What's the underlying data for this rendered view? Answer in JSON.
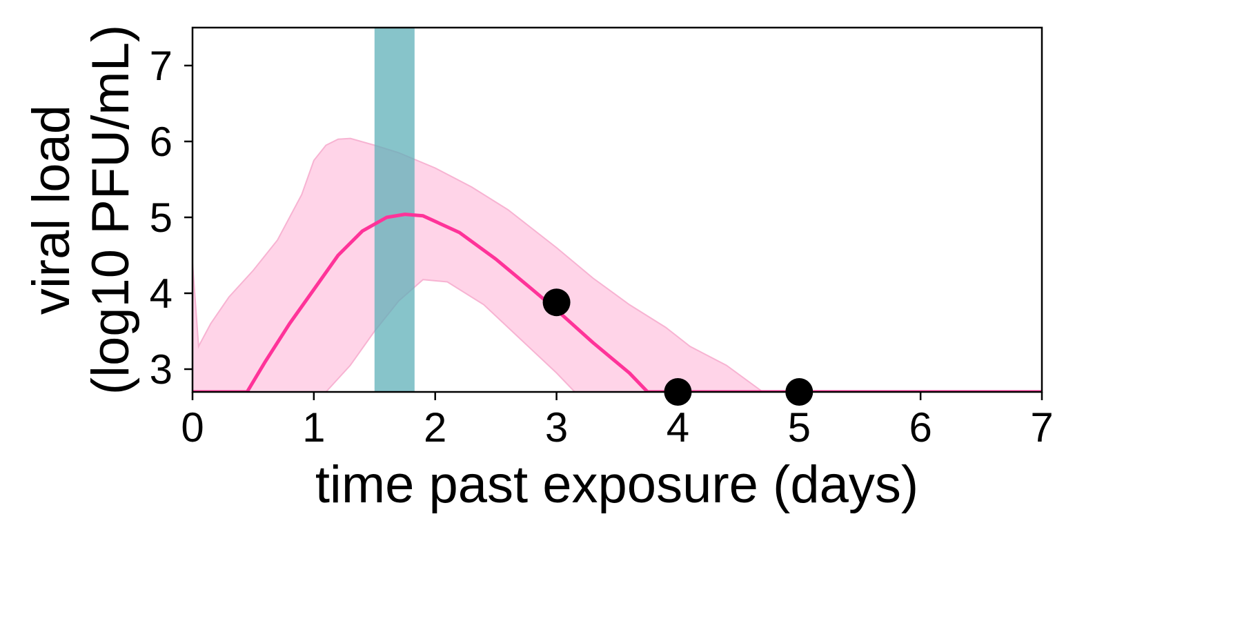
{
  "chart_data": {
    "type": "line",
    "xlabel": "time past exposure (days)",
    "ylabel_line1": "viral load",
    "ylabel_line2": "(log10 PFU/mL)",
    "xlim": [
      0,
      7
    ],
    "ylim": [
      2.7,
      7.5
    ],
    "x_ticks": [
      0,
      1,
      2,
      3,
      4,
      5,
      6,
      7
    ],
    "y_ticks": [
      3,
      4,
      5,
      6,
      7
    ],
    "grid": false,
    "colors": {
      "line": "#ff3399",
      "band": "#ffd4e8",
      "band_edge": "#f7b3d2",
      "highlight": "#5fb0b8",
      "points": "#000000"
    },
    "highlight_region": {
      "x0": 1.5,
      "x1": 1.83
    },
    "median_line": {
      "x": [
        0,
        0.45,
        0.6,
        0.8,
        1.0,
        1.2,
        1.4,
        1.6,
        1.75,
        1.9,
        2.2,
        2.5,
        2.8,
        3.0,
        3.3,
        3.6,
        3.75,
        7.0
      ],
      "y": [
        2.7,
        2.7,
        3.1,
        3.6,
        4.05,
        4.5,
        4.82,
        5.0,
        5.04,
        5.02,
        4.8,
        4.45,
        4.05,
        3.78,
        3.35,
        2.95,
        2.7,
        2.7
      ]
    },
    "band_upper": {
      "x": [
        0,
        0.05,
        0.15,
        0.3,
        0.5,
        0.7,
        0.9,
        1.0,
        1.1,
        1.2,
        1.3,
        1.5,
        1.7,
        2.0,
        2.3,
        2.6,
        3.0,
        3.3,
        3.6,
        3.9,
        4.1,
        4.4,
        4.7,
        7.0
      ],
      "y": [
        4.4,
        3.3,
        3.6,
        3.95,
        4.3,
        4.7,
        5.3,
        5.75,
        5.95,
        6.03,
        6.04,
        5.95,
        5.85,
        5.65,
        5.4,
        5.1,
        4.6,
        4.2,
        3.85,
        3.55,
        3.3,
        3.05,
        2.7,
        2.7
      ]
    },
    "band_lower": {
      "x": [
        0,
        1.1,
        1.3,
        1.5,
        1.7,
        1.9,
        2.1,
        2.4,
        2.7,
        3.0,
        3.15,
        7.0
      ],
      "y": [
        2.7,
        2.7,
        3.05,
        3.5,
        3.9,
        4.18,
        4.15,
        3.85,
        3.4,
        2.95,
        2.7,
        2.7
      ]
    },
    "observations": {
      "x": [
        3,
        4,
        5
      ],
      "y": [
        3.88,
        2.7,
        2.7
      ]
    }
  }
}
